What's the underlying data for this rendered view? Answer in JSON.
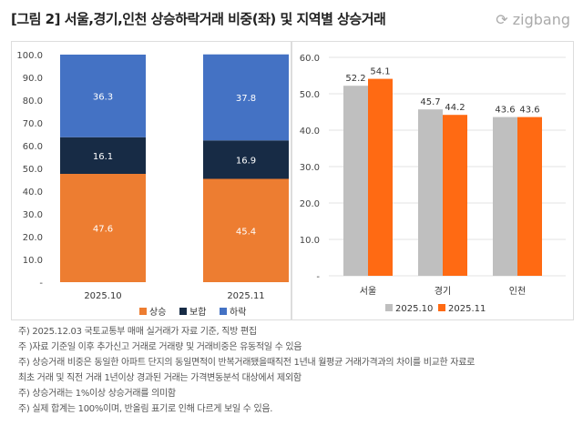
{
  "title": "[그림 2] 서울,경기,인천 상승하락거래 비중(좌) 및 지역별 상승거래",
  "logo": "zigbang",
  "chart_data": [
    {
      "type": "stacked-bar",
      "categories": [
        "2025.10",
        "2025.11"
      ],
      "series": [
        {
          "name": "상승",
          "values": [
            47.6,
            45.4
          ],
          "color": "#ED7D31"
        },
        {
          "name": "보합",
          "values": [
            16.1,
            16.9
          ],
          "color": "#172B45"
        },
        {
          "name": "하락",
          "values": [
            36.3,
            37.8
          ],
          "color": "#4472C4"
        }
      ],
      "ylim": [
        0,
        100
      ],
      "yticks": [
        "-",
        "10.0",
        "20.0",
        "30.0",
        "40.0",
        "50.0",
        "60.0",
        "70.0",
        "80.0",
        "90.0",
        "100.0"
      ],
      "grid": false,
      "legend": "bottom"
    },
    {
      "type": "bar",
      "categories": [
        "서울",
        "경기",
        "인천"
      ],
      "series": [
        {
          "name": "2025.10",
          "values": [
            52.2,
            45.7,
            43.6
          ],
          "color": "#BFBFBF"
        },
        {
          "name": "2025.11",
          "values": [
            54.1,
            44.2,
            43.6
          ],
          "color": "#FF6A13"
        }
      ],
      "ylim": [
        0,
        60
      ],
      "yticks": [
        "-",
        "10.0",
        "20.0",
        "30.0",
        "40.0",
        "50.0",
        "60.0"
      ],
      "grid": true,
      "legend": "bottom"
    }
  ],
  "notes": [
    "주) 2025.12.03 국토교통부 매매 실거래가 자료 기준, 직방 편집",
    "주 )자료 기준일 이후 추가신고 거래로 거래량 및 거래비중은 유동적일 수 있음",
    "주) 상승거래 비중은 동일한 아파트 단지의 동일면적이 반복거래됐을때직전 1년내 월평균 거래가격과의 차이를 비교한 자료로",
    "최초 거래 및 직전 거래 1년이상 경과된 거래는 가격변동분석 대상에서 제외함",
    "주) 상승거래는 1%이상 상승거래를 의미함",
    "주) 실제 합계는 100%이며, 반올림 표기로 인해 다르게 보일 수 있음."
  ]
}
